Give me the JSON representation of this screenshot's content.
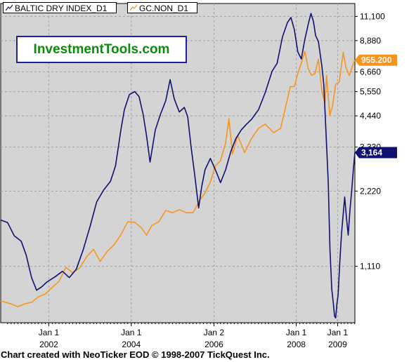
{
  "legend": {
    "series1": "BALTIC DRY INDEX_D1",
    "series2": "GC.NON_D1"
  },
  "brand": "InvestmentTools.com",
  "footer": "Chart created with NeoTicker EOD © 1998-2007 TickQuest Inc.",
  "chart_data": {
    "type": "line",
    "title": "",
    "xlabel": "",
    "ylabel": "",
    "y_scale": "log",
    "grid": true,
    "legend_position": "top-left",
    "colors": {
      "plot_background": "#d4d4d4",
      "grid": "#a0a0a0",
      "series1": "#101070",
      "series2": "#f7941d"
    },
    "x_ticks": [
      {
        "line1": "Jan 1",
        "line2": "2002",
        "x": "2002-01-01"
      },
      {
        "line1": "Jan 1",
        "line2": "2004",
        "x": "2004-01-01"
      },
      {
        "line1": "Jan 2",
        "line2": "2006",
        "x": "2006-01-02"
      },
      {
        "line1": "Jan 1",
        "line2": "2008",
        "x": "2008-01-01"
      },
      {
        "line1": "Jan 1",
        "line2": "2009",
        "x": "2009-01-01"
      }
    ],
    "y_ticks": [
      "11,100",
      "8,880",
      "6,660",
      "5,550",
      "4,440",
      "3,330",
      "2,220",
      "1,110"
    ],
    "y_tick_values": [
      11100,
      8880,
      6660,
      5550,
      4440,
      3330,
      2220,
      1110
    ],
    "last_value_labels": {
      "series1": "3,164",
      "series2": "955.200"
    },
    "series": [
      {
        "name": "BALTIC DRY INDEX_D1",
        "axis": "price",
        "points": [
          [
            "2000-11-01",
            1700
          ],
          [
            "2001-01-01",
            1660
          ],
          [
            "2001-03-01",
            1470
          ],
          [
            "2001-05-01",
            1400
          ],
          [
            "2001-06-15",
            1230
          ],
          [
            "2001-08-01",
            1000
          ],
          [
            "2001-09-15",
            890
          ],
          [
            "2001-11-01",
            920
          ],
          [
            "2001-12-15",
            960
          ],
          [
            "2002-03-01",
            1010
          ],
          [
            "2002-05-01",
            1060
          ],
          [
            "2002-07-01",
            1000
          ],
          [
            "2002-09-01",
            1080
          ],
          [
            "2002-11-01",
            1290
          ],
          [
            "2003-01-01",
            1600
          ],
          [
            "2003-03-01",
            2010
          ],
          [
            "2003-05-01",
            2240
          ],
          [
            "2003-07-01",
            2430
          ],
          [
            "2003-08-15",
            2800
          ],
          [
            "2003-10-01",
            3900
          ],
          [
            "2003-11-01",
            4700
          ],
          [
            "2003-12-15",
            5400
          ],
          [
            "2004-02-01",
            5550
          ],
          [
            "2004-03-10",
            5300
          ],
          [
            "2004-04-15",
            4500
          ],
          [
            "2004-05-15",
            3700
          ],
          [
            "2004-06-15",
            2900
          ],
          [
            "2004-08-01",
            3900
          ],
          [
            "2004-09-15",
            4500
          ],
          [
            "2004-11-01",
            5100
          ],
          [
            "2004-12-10",
            6200
          ],
          [
            "2005-01-15",
            5200
          ],
          [
            "2005-03-01",
            4600
          ],
          [
            "2005-04-15",
            4800
          ],
          [
            "2005-05-15",
            4400
          ],
          [
            "2005-06-15",
            3300
          ],
          [
            "2005-07-15",
            2600
          ],
          [
            "2005-08-20",
            1900
          ],
          [
            "2005-09-15",
            2300
          ],
          [
            "2005-10-15",
            2700
          ],
          [
            "2005-12-01",
            3000
          ],
          [
            "2006-01-15",
            2700
          ],
          [
            "2006-03-01",
            2400
          ],
          [
            "2006-04-15",
            2700
          ],
          [
            "2006-06-01",
            3200
          ],
          [
            "2006-07-15",
            3600
          ],
          [
            "2006-09-01",
            3900
          ],
          [
            "2006-10-15",
            4100
          ],
          [
            "2006-12-01",
            4300
          ],
          [
            "2007-02-01",
            4700
          ],
          [
            "2007-04-01",
            5500
          ],
          [
            "2007-06-01",
            6700
          ],
          [
            "2007-07-15",
            7200
          ],
          [
            "2007-09-01",
            9200
          ],
          [
            "2007-10-15",
            10500
          ],
          [
            "2007-11-15",
            11000
          ],
          [
            "2007-12-15",
            9800
          ],
          [
            "2008-01-15",
            8000
          ],
          [
            "2008-02-15",
            7500
          ],
          [
            "2008-03-15",
            8900
          ],
          [
            "2008-04-15",
            10300
          ],
          [
            "2008-05-10",
            11400
          ],
          [
            "2008-06-01",
            10600
          ],
          [
            "2008-06-20",
            9300
          ],
          [
            "2008-07-15",
            8800
          ],
          [
            "2008-08-15",
            7000
          ],
          [
            "2008-09-01",
            5900
          ],
          [
            "2008-09-20",
            3800
          ],
          [
            "2008-10-10",
            2400
          ],
          [
            "2008-10-25",
            1300
          ],
          [
            "2008-11-10",
            900
          ],
          [
            "2008-11-25",
            780
          ],
          [
            "2008-12-05",
            700
          ],
          [
            "2008-12-15",
            690
          ],
          [
            "2008-12-25",
            780
          ],
          [
            "2009-01-05",
            850
          ],
          [
            "2009-01-20",
            1150
          ],
          [
            "2009-02-05",
            1500
          ],
          [
            "2009-02-20",
            1800
          ],
          [
            "2009-03-05",
            2100
          ],
          [
            "2009-03-20",
            1750
          ],
          [
            "2009-04-05",
            1480
          ],
          [
            "2009-04-20",
            1850
          ],
          [
            "2009-05-05",
            2200
          ],
          [
            "2009-05-20",
            2700
          ],
          [
            "2009-06-03",
            3164
          ]
        ]
      },
      {
        "name": "GC.NON_D1",
        "axis": "gold",
        "points": [
          [
            "2000-11-01",
            266
          ],
          [
            "2001-02-01",
            262
          ],
          [
            "2001-04-01",
            258
          ],
          [
            "2001-06-01",
            262
          ],
          [
            "2001-08-01",
            264
          ],
          [
            "2001-10-01",
            272
          ],
          [
            "2001-12-01",
            276
          ],
          [
            "2002-02-01",
            286
          ],
          [
            "2002-04-01",
            295
          ],
          [
            "2002-06-01",
            318
          ],
          [
            "2002-08-01",
            309
          ],
          [
            "2002-10-01",
            317
          ],
          [
            "2002-12-01",
            336
          ],
          [
            "2003-02-01",
            350
          ],
          [
            "2003-04-01",
            328
          ],
          [
            "2003-06-01",
            346
          ],
          [
            "2003-08-01",
            358
          ],
          [
            "2003-10-01",
            378
          ],
          [
            "2003-12-01",
            405
          ],
          [
            "2004-02-01",
            404
          ],
          [
            "2004-04-01",
            392
          ],
          [
            "2004-05-15",
            377
          ],
          [
            "2004-07-01",
            397
          ],
          [
            "2004-09-01",
            405
          ],
          [
            "2004-11-01",
            430
          ],
          [
            "2005-01-01",
            425
          ],
          [
            "2005-03-01",
            432
          ],
          [
            "2005-05-01",
            425
          ],
          [
            "2005-07-01",
            425
          ],
          [
            "2005-09-01",
            455
          ],
          [
            "2005-10-15",
            472
          ],
          [
            "2005-12-01",
            500
          ],
          [
            "2006-01-15",
            545
          ],
          [
            "2006-03-01",
            560
          ],
          [
            "2006-04-15",
            615
          ],
          [
            "2006-05-15",
            700
          ],
          [
            "2006-06-15",
            580
          ],
          [
            "2006-08-01",
            640
          ],
          [
            "2006-10-01",
            585
          ],
          [
            "2006-12-01",
            630
          ],
          [
            "2007-02-01",
            665
          ],
          [
            "2007-04-01",
            680
          ],
          [
            "2007-06-15",
            650
          ],
          [
            "2007-08-15",
            665
          ],
          [
            "2007-10-01",
            750
          ],
          [
            "2007-11-10",
            830
          ],
          [
            "2007-12-15",
            830
          ],
          [
            "2008-01-15",
            890
          ],
          [
            "2008-02-15",
            940
          ],
          [
            "2008-03-17",
            1000
          ],
          [
            "2008-04-15",
            915
          ],
          [
            "2008-05-15",
            880
          ],
          [
            "2008-06-15",
            890
          ],
          [
            "2008-07-15",
            960
          ],
          [
            "2008-08-15",
            810
          ],
          [
            "2008-09-10",
            760
          ],
          [
            "2008-09-25",
            880
          ],
          [
            "2008-10-24",
            712
          ],
          [
            "2008-11-15",
            745
          ],
          [
            "2008-12-15",
            840
          ],
          [
            "2009-01-15",
            850
          ],
          [
            "2009-02-20",
            995
          ],
          [
            "2009-03-15",
            920
          ],
          [
            "2009-04-15",
            880
          ],
          [
            "2009-05-15",
            930
          ],
          [
            "2009-06-03",
            955.2
          ]
        ]
      }
    ]
  }
}
